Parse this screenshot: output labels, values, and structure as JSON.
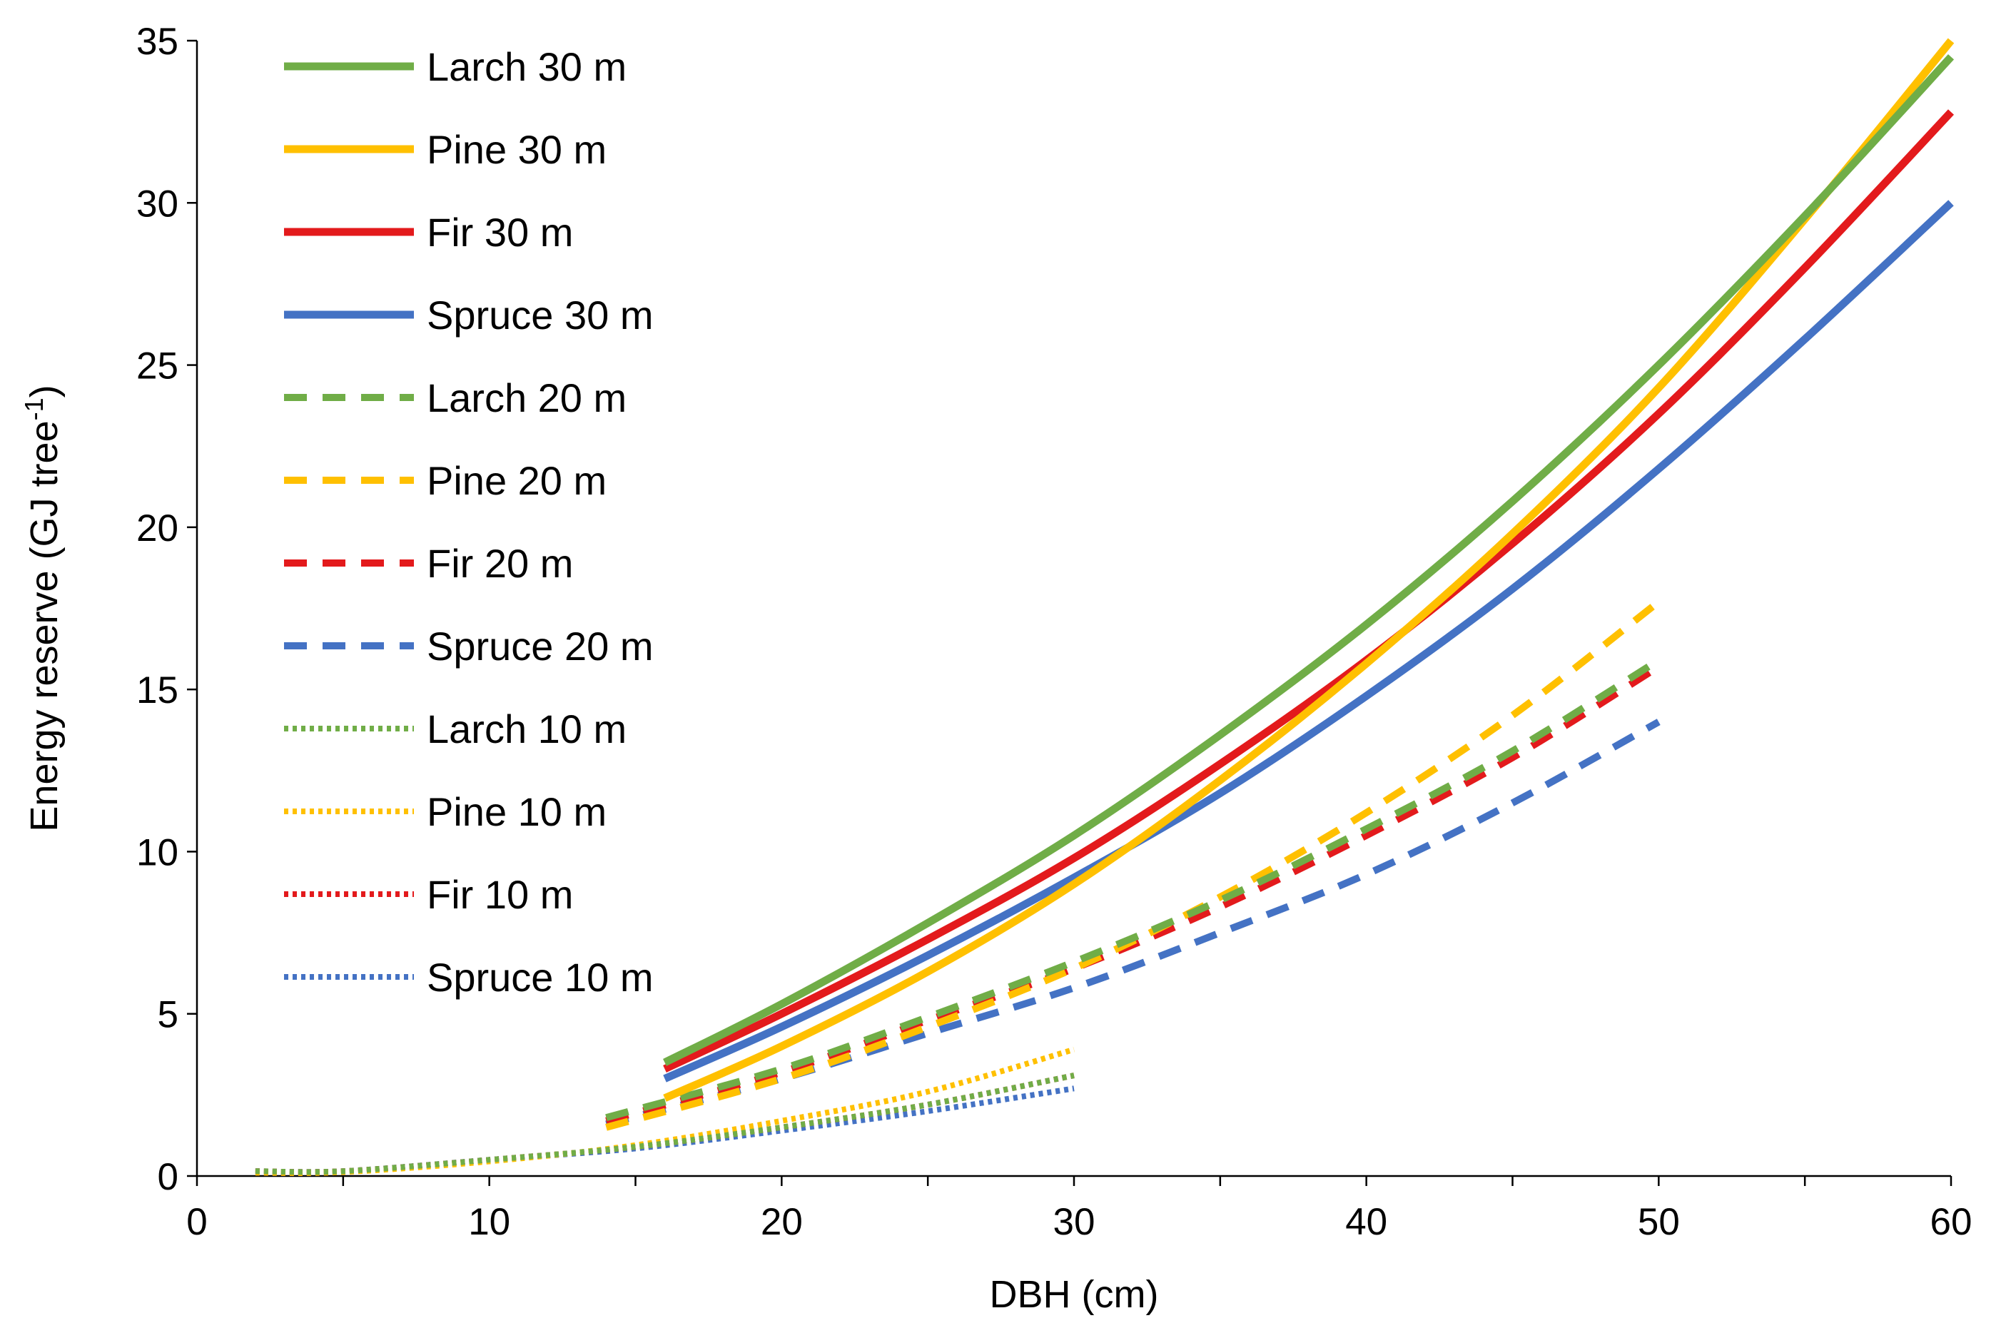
{
  "chart_data": {
    "type": "line",
    "title": "",
    "xlabel": "DBH (cm)",
    "ylabel": "Energy reserve (GJ tree",
    "ylabel_superscript": "-1",
    "ylabel_suffix": ")",
    "xlim": [
      0,
      60
    ],
    "ylim": [
      0,
      35
    ],
    "x_ticks": [
      0,
      10,
      20,
      30,
      40,
      50,
      60
    ],
    "x_tick_labels": [
      "0",
      "10",
      "20",
      "30",
      "40",
      "50",
      "60"
    ],
    "y_ticks": [
      0,
      5,
      10,
      15,
      20,
      25,
      30,
      35
    ],
    "y_tick_labels": [
      "0",
      "5",
      "10",
      "15",
      "20",
      "25",
      "30",
      "35"
    ],
    "grid": false,
    "legend_position": "top-left",
    "series": [
      {
        "name": "Larch 30 m",
        "color": "#70AD47",
        "style": "solid",
        "x": [
          16,
          20,
          25,
          30,
          35,
          40,
          45,
          50,
          55,
          60
        ],
        "y": [
          3.5,
          5.3,
          7.8,
          10.5,
          13.6,
          17.0,
          20.8,
          25.0,
          29.6,
          34.5
        ]
      },
      {
        "name": "Pine 30 m",
        "color": "#FFC000",
        "style": "solid",
        "x": [
          16,
          20,
          25,
          30,
          35,
          40,
          45,
          50,
          55,
          60
        ],
        "y": [
          2.4,
          4.0,
          6.3,
          9.0,
          12.2,
          15.8,
          19.8,
          24.3,
          29.5,
          35.0
        ]
      },
      {
        "name": "Fir 30 m",
        "color": "#E31A1C",
        "style": "solid",
        "x": [
          16,
          20,
          25,
          30,
          35,
          40,
          45,
          50,
          55,
          60
        ],
        "y": [
          3.3,
          5.0,
          7.3,
          9.8,
          12.7,
          15.9,
          19.5,
          23.5,
          28.0,
          32.8
        ]
      },
      {
        "name": "Spruce 30 m",
        "color": "#4472C4",
        "style": "solid",
        "x": [
          16,
          20,
          25,
          30,
          35,
          40,
          45,
          50,
          55,
          60
        ],
        "y": [
          3.0,
          4.6,
          6.8,
          9.2,
          11.8,
          14.8,
          18.1,
          21.8,
          25.8,
          30.0
        ]
      },
      {
        "name": "Larch 20 m",
        "color": "#70AD47",
        "style": "dashed",
        "x": [
          14,
          20,
          25,
          30,
          35,
          40,
          45,
          50
        ],
        "y": [
          1.8,
          3.3,
          4.9,
          6.6,
          8.5,
          10.7,
          13.1,
          15.9
        ]
      },
      {
        "name": "Pine 20 m",
        "color": "#FFC000",
        "style": "dashed",
        "x": [
          14,
          20,
          25,
          30,
          35,
          40,
          45,
          50
        ],
        "y": [
          1.5,
          3.0,
          4.6,
          6.4,
          8.6,
          11.2,
          14.2,
          17.7
        ]
      },
      {
        "name": "Fir 20 m",
        "color": "#E31A1C",
        "style": "dashed",
        "x": [
          14,
          20,
          25,
          30,
          35,
          40,
          45,
          50
        ],
        "y": [
          1.7,
          3.2,
          4.8,
          6.4,
          8.3,
          10.5,
          12.9,
          15.7
        ]
      },
      {
        "name": "Spruce 20 m",
        "color": "#4472C4",
        "style": "dashed",
        "x": [
          14,
          20,
          25,
          30,
          35,
          40,
          45,
          50
        ],
        "y": [
          1.6,
          3.0,
          4.4,
          5.8,
          7.5,
          9.3,
          11.5,
          14.0
        ]
      },
      {
        "name": "Larch 10 m",
        "color": "#70AD47",
        "style": "dotted",
        "x": [
          2,
          5,
          10,
          15,
          20,
          25,
          30
        ],
        "y": [
          0.15,
          0.15,
          0.5,
          0.9,
          1.5,
          2.2,
          3.1
        ]
      },
      {
        "name": "Pine 10 m",
        "color": "#FFC000",
        "style": "dotted",
        "x": [
          2,
          5,
          10,
          15,
          20,
          25,
          30
        ],
        "y": [
          0.1,
          0.12,
          0.45,
          0.95,
          1.7,
          2.6,
          3.9
        ]
      },
      {
        "name": "Fir 10 m",
        "color": "#E31A1C",
        "style": "dotted",
        "x": [
          2,
          5,
          10,
          15,
          20,
          25,
          30
        ],
        "y": [
          0.15,
          0.15,
          0.5,
          0.9,
          1.5,
          2.2,
          3.1
        ]
      },
      {
        "name": "Spruce 10 m",
        "color": "#4472C4",
        "style": "dotted",
        "x": [
          2,
          5,
          10,
          15,
          20,
          25,
          30
        ],
        "y": [
          0.15,
          0.15,
          0.5,
          0.85,
          1.4,
          2.0,
          2.7
        ]
      }
    ]
  }
}
